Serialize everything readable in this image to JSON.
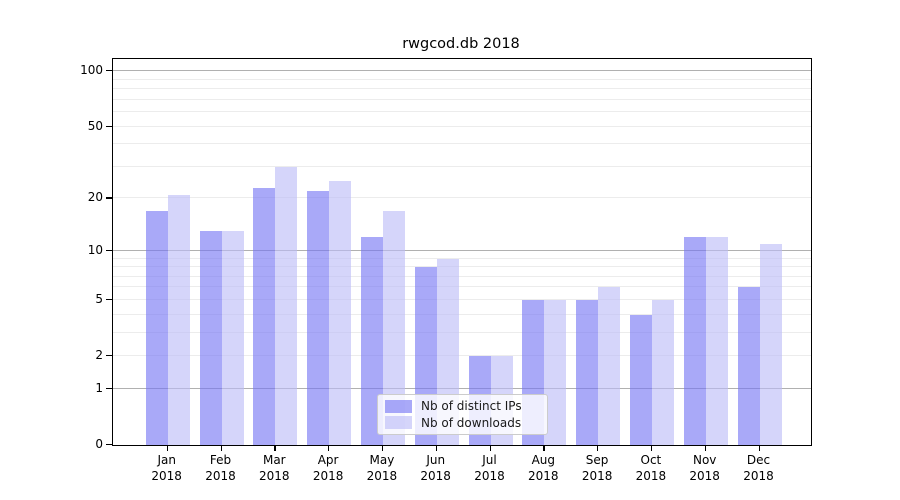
{
  "title": "rwgcod.db 2018",
  "colors": {
    "series1_fill": "rgba(116,116,243,0.62)",
    "series1_solid": "#a9a9f8",
    "series2_fill": "rgba(188,188,247,0.62)",
    "series2_solid": "#d6d6fa",
    "grid_major": "#b0b0b0",
    "grid_minor": "#ececec",
    "spine": "#000000",
    "legend_border": "#cccccc"
  },
  "legend": {
    "items": [
      {
        "label": "Nb of distinct IPs"
      },
      {
        "label": "Nb of downloads"
      }
    ]
  },
  "chart_data": {
    "type": "bar",
    "title": "rwgcod.db 2018",
    "categories": [
      "Jan",
      "Feb",
      "Mar",
      "Apr",
      "May",
      "Jun",
      "Jul",
      "Aug",
      "Sep",
      "Oct",
      "Nov",
      "Dec"
    ],
    "category_year": "2018",
    "series": [
      {
        "name": "Nb of distinct IPs",
        "color": "rgba(116,116,243,0.62)",
        "values": [
          17,
          13,
          23,
          22,
          12,
          8,
          2,
          5,
          5,
          4,
          12,
          6
        ]
      },
      {
        "name": "Nb of downloads",
        "color": "rgba(188,188,247,0.62)",
        "values": [
          21,
          13,
          30,
          25,
          17,
          9,
          2,
          5,
          6,
          5,
          12,
          11
        ]
      }
    ],
    "xlabel": "",
    "ylabel": "",
    "yscale": "log1p",
    "ylim": [
      0,
      117
    ],
    "yticks": [
      {
        "value": 0,
        "label": "0"
      },
      {
        "value": 1,
        "label": "1"
      },
      {
        "value": 2,
        "label": "2"
      },
      {
        "value": 5,
        "label": "5"
      },
      {
        "value": 10,
        "label": "10"
      },
      {
        "value": 20,
        "label": "20"
      },
      {
        "value": 50,
        "label": "50"
      },
      {
        "value": 100,
        "label": "100"
      }
    ],
    "grid": {
      "major_lines": [
        1,
        10,
        100
      ],
      "minor_lines": [
        2,
        3,
        4,
        5,
        6,
        7,
        8,
        9,
        20,
        30,
        40,
        50,
        60,
        70,
        80,
        90
      ]
    },
    "legend_position": "lower center",
    "grid_on": true
  }
}
